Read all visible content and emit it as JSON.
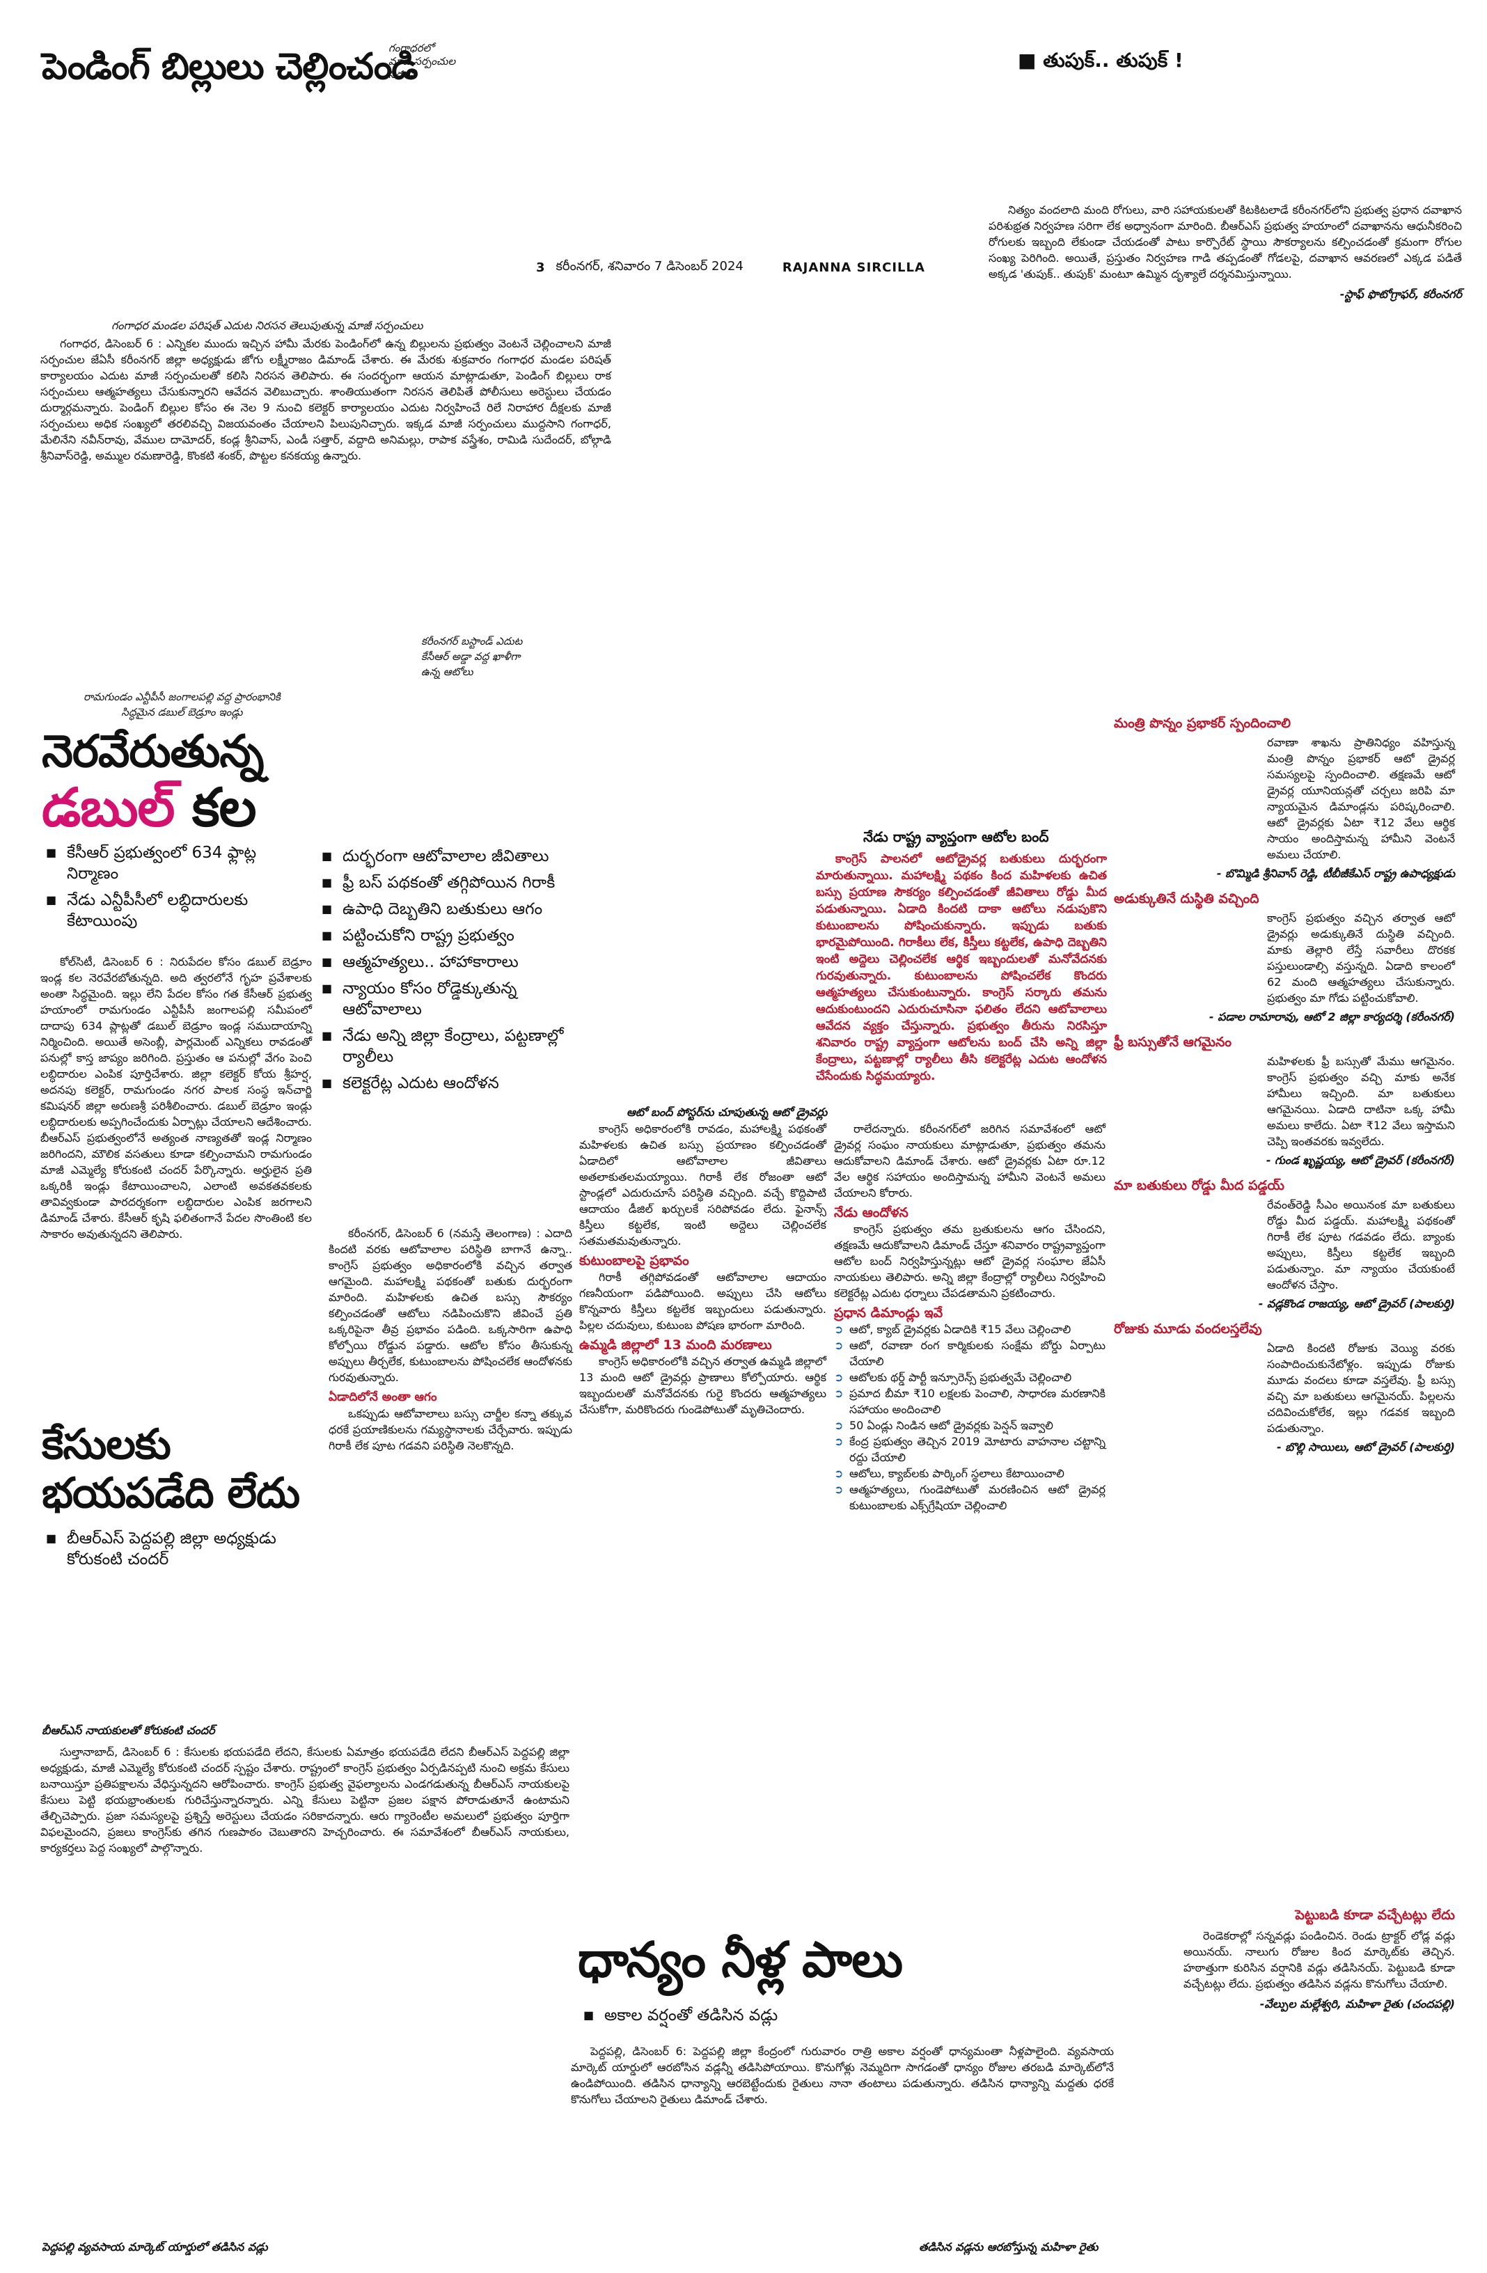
{
  "top_left": {
    "headline": "పెండింగ్ బిల్లులు చెల్లించండి",
    "side_caption_lines": [
      "గంగాధరలో",
      "మాజీ సర్పంచుల",
      "నిరసన"
    ],
    "photo_caption": "గంగాధర మండల పరిషత్ ఎదుట నిరసన తెలుపుతున్న మాజీ సర్పంచులు",
    "body": "గంగాధర, డిసెంబర్ 6 : ఎన్నికల ముందు ఇచ్చిన హామీ మేరకు పెండింగ్‌లో ఉన్న బిల్లులను ప్రభుత్వం వెంటనే చెల్లించాలని మాజీ సర్పంచుల జేఏసీ కరీంనగర్ జిల్లా అధ్యక్షుడు జోగు లక్ష్మీరాజం డిమాండ్ చేశారు. ఈ మేరకు శుక్రవారం గంగాధర మండల పరిషత్ కార్యాలయం ఎదుట మాజీ సర్పంచులతో కలిసి నిరసన తెలిపారు. ఈ సందర్భంగా ఆయన మాట్లాడుతూ, పెండింగ్ బిల్లులు రాక సర్పంచులు ఆత్మహత్యలు చేసుకున్నారని ఆవేదన వెలిబుచ్చారు. శాంతియుతంగా నిరసన తెలిపితే పోలీసులు అరెస్టులు చేయడం దుర్మార్గమన్నారు. పెండింగ్ బిల్లుల కోసం ఈ నెల 9 నుంచి కలెక్టర్ కార్యాలయం ఎదుట నిర్వహించే రిలే నిరాహార దీక్షలకు మాజీ సర్పంచులు అధిక సంఖ్యలో తరలివచ్చి విజయవంతం చేయాలని పిలుపునిచ్చారు. ఇక్కడ మాజీ సర్పంచులు ముద్దసాని గంగాధర్, మేలినేని నవీన్‌రావు, వేముల దామోదర్, కండ్ల శ్రీనివాస్, ఎండీ సత్తార్, వద్దాది అనిమల్లు, రాపాక వస్త్రేశం, రామిడి సుదేందర్, బోల్గాడి శ్రీనివాస్‌రెడ్డి, అమ్ముల రమణారెడ్డి, కొంకటి శంకర్, పొట్టల కనకయ్య ఉన్నారు."
  },
  "top_right": {
    "headline": "తుపుక్.. తుపుక్ !",
    "body": "నిత్యం వందలాది మంది రోగులు, వారి సహాయకులతో కిటకిటలాడే కరీంనగర్‌లోని ప్రభుత్వ ప్రధాన దవాఖాన పరిశుభ్రత నిర్వహణ సరిగా లేక అధ్వానంగా మారింది. బీఆర్ఎస్ ప్రభుత్వ హయాంలో దవాఖానను ఆధునీకరించి రోగులకు ఇబ్బంది లేకుండా చేయడంతో పాటు కార్పొరేట్ స్థాయి సౌకర్యాలను కల్పించడంతో క్రమంగా రోగుల సంఖ్య పెరిగింది. అయితే, ప్రస్తుతం నిర్వహణ గాడి తప్పడంతో గోడలపై, దవాఖాన ఆవరణలో ఎక్కడ పడితే అక్కడ 'తుపుక్.. తుపుక్' మంటూ ఉమ్మిన దృశ్యాలే దర్శనమిస్తున్నాయి.",
    "credit": "-స్టాఫ్ ఫొటోగ్రాఫర్, కరీంనగర్"
  },
  "folio": {
    "page_no": "3",
    "dateline": "కరీంనగర్, శనివారం 7 డిసెంబర్ 2024",
    "edition": "RAJANNA SIRCILLA"
  },
  "mid_captions": {
    "photo_caption_1": [
      "కరీంనగర్ బస్టాండ్ ఎదుట",
      "కేసీఆర్ అడ్డా వద్ద ఖాళీగా",
      "ఉన్న ఆటోలు"
    ],
    "photo_caption_2": [
      "రామగుండం ఎన్టీపీసీ జంగాలపల్లి వద్ద ప్రారంభానికి",
      "సిద్ధమైన డబుల్ బెడ్రూం ఇండ్లు"
    ]
  },
  "double_bed": {
    "headline_part1": "నెరవేరుతున్న",
    "headline_red": "డబుల్",
    "headline_part2": "కల",
    "bullets": [
      "కేసీఆర్ ప్రభుత్వంలో 634 ఫ్లాట్ల నిర్మాణం",
      "నేడు ఎన్టీపీసీలో లబ్ధిదారులకు కేటాయింపు"
    ],
    "body": "కోల్‌సిటీ, డిసెంబర్ 6 : నిరుపేదల కోసం డబుల్ బెడ్రూం ఇండ్ల కల నెరవేరబోతున్నది. అది త్వరలోనే గృహ ప్రవేశాలకు అంతా సిద్ధమైంది. ఇల్లు లేని పేదల కోసం గత కేసీఆర్ ప్రభుత్వ హయాంలో రామగుండం ఎన్టీపీసీ జంగాలపల్లి సమీపంలో దాదాపు 634 ప్లాట్లతో డబుల్ బెడ్రూం ఇండ్ల సముదాయాన్ని నిర్మించింది. అయితే అసెంబ్లీ, పార్లమెంట్ ఎన్నికలు రావడంతో పనుల్లో కాస్త జాప్యం జరిగింది. ప్రస్తుతం ఆ పనుల్లో వేగం పెంచి లబ్ధిదారుల ఎంపిక పూర్తిచేశారు. జిల్లా కలెక్టర్ కోయ శ్రీహర్ష, అదనపు కలెక్టర్, రామగుండం నగర పాలక సంస్థ ఇన్‌చార్జి కమిషనర్ జిల్లా అరుణశ్రీ పరిశీలించారు. డబుల్ బెడ్రూం ఇండ్లు లబ్ధిదారులకు అప్పగించేందుకు ఏర్పాట్లు చేయాలని ఆదేశించారు. బీఆర్ఎస్ ప్రభుత్వంలోనే అత్యంత నాణ్యతతో ఇండ్ల నిర్మాణం జరిగిందని, మౌలిక వసతులు కూడా కల్పించామని రామగుండం మాజీ ఎమ్మెల్యే కోరుకంటి చందర్ పేర్కొన్నారు. అర్హులైన ప్రతి ఒక్కరికీ ఇండ్లు కేటాయించాలని, ఎలాంటి అవకతవకలకు తావివ్వకుండా పారదర్శకంగా లబ్ధిదారుల ఎంపిక జరగాలని డిమాండ్ చేశారు. కేసీఆర్ కృషి ఫలితంగానే పేదల సొంతింటి కల సాకారం అవుతున్నదని తెలిపారు.",
    "sub_bullets": [
      "దుర్భరంగా ఆటోవాలాల జీవితాలు",
      "ఫ్రీ బస్ పథకంతో తగ్గిపోయిన గిరాకీ",
      "ఉపాధి దెబ్బతిని బతుకులు ఆగం",
      "పట్టించుకోని రాష్ట్ర ప్రభుత్వం",
      "ఆత్మహత్యలు.. హాహాకారాలు",
      "న్యాయం కోసం రోడ్డెక్కుతున్న ఆటోవాలాలు",
      "నేడు అన్ని జిల్లా కేంద్రాలు, పట్టణాల్లో ర్యాలీలు",
      "కలెక్టరేట్ల ఎదుట ఆందోళన"
    ]
  },
  "cases": {
    "headline": "కేసులకు భయపడేది లేదు",
    "bullets": [
      "బీఆర్ఎస్ పెద్దపల్లి జిల్లా అధ్యక్షుడు కోరుకంటి చందర్"
    ],
    "photo_caption": "బీఆర్ఎస్ నాయకులతో కోరుకంటి చందర్",
    "body": "సుల్తానాబాద్, డిసెంబర్ 6 : కేసులకు భయపడేది లేదని, కేసులకు ఏమాత్రం భయపడేది లేదని బీఆర్ఎస్ పెద్దపల్లి జిల్లా అధ్యక్షుడు, మాజీ ఎమ్మెల్యే కోరుకంటి చందర్ స్పష్టం చేశారు. రాష్ట్రంలో కాంగ్రెస్ ప్రభుత్వం ఏర్పడినప్పటి నుంచి అక్రమ కేసులు బనాయిస్తూ ప్రతిపక్షాలను వేధిస్తున్నదని ఆరోపించారు. కాంగ్రెస్ ప్రభుత్వ వైఫల్యాలను ఎండగడుతున్న బీఆర్ఎస్ నాయకులపై కేసులు పెట్టి భయభ్రాంతులకు గురిచేస్తున్నారన్నారు. ఎన్ని కేసులు పెట్టినా ప్రజల పక్షాన పోరాడుతూనే ఉంటామని తేల్చిచెప్పారు. ప్రజా సమస్యలపై ప్రశ్నిస్తే అరెస్టులు చేయడం సరికాదన్నారు. ఆరు గ్యారెంటీల అమలులో ప్రభుత్వం పూర్తిగా విఫలమైందని, ప్రజలు కాంగ్రెస్‌కు తగిన గుణపాఠం చెబుతారని హెచ్చరించారు. ఈ సమావేశంలో బీఆర్ఎస్ నాయకులు, కార్యకర్తలు పెద్ద సంఖ్యలో పాల్గొన్నారు."
  },
  "auto_main": {
    "col1": "కరీంనగర్, డిసెంబర్ 6 (నమస్తే తెలంగాణ) : ఎదాది కిందటి వరకు ఆటోవాలాల పరిస్థితి బాగానే ఉన్నా.. కాంగ్రెస్ ప్రభుత్వం అధికారంలోకి వచ్చిన తర్వాత ఆగమైంది. మహాలక్ష్మి పథకంతో బతుకు దుర్భరంగా మారింది. మహిళలకు ఉచిత బస్సు సౌకర్యం కల్పించడంతో ఆటోలు నడిపించుకొని జీవించే ప్రతి ఒక్కరిపైనా తీవ్ర ప్రభావం పడింది. ఒక్కసారిగా ఉపాధి కోల్పోయి రోడ్డున పడ్డారు. ఆటోల కోసం తీసుకున్న అప్పులు తీర్చలేక, కుటుంబాలను పోషించలేక ఆందోళనకు గురవుతున్నారు.",
    "col2": "కాంగ్రెస్ అధికారంలోకి రావడం, మహాలక్ష్మి పథకంతో మహిళలకు ఉచిత బస్సు ప్రయాణం కల్పించడంతో ఏడాదిలో ఆటోవాలాల జీవితాలు అతలాకుతలమయ్యాయి. గిరాకీ లేక రోజంతా ఆటో స్టాండ్లలో ఎదురుచూసే పరిస్థితి వచ్చింది. వచ్చే కొద్దిపాటి ఆదాయం డీజిల్ ఖర్చులకే సరిపోవడం లేదు. ఫైనాన్స్ కిస్తీలు కట్టలేక, ఇంటి అద్దెలు చెల్లించలేక సతమతమవుతున్నారు.",
    "col3": "రాలేదన్నారు. కరీంనగర్‌లో జరిగిన సమావేశంలో ఆటో డ్రైవర్ల సంఘం నాయకులు మాట్లాడుతూ, ప్రభుత్వం తమను ఆదుకోవాలని డిమాండ్ చేశారు. ఆటో డ్రైవర్లకు ఏటా రూ.12 వేల ఆర్థిక సహాయం అందిస్తామన్న హామీని వెంటనే అమలు చేయాలని కోరారు.",
    "sub_vanish": "ఏడాదిలోనే అంతా ఆగం",
    "vanish_text": "ఒకప్పుడు ఆటోవాలాలు బస్సు చార్జీల కన్నా తక్కువ ధరకే ప్రయాణికులను గమ్యస్థానాలకు చేర్చేవారు. ఇప్పుడు గిరాకీ లేక పూట గడవని పరిస్థితి నెలకొన్నది.",
    "sub_family": "కుటుంబాలపై ప్రభావం",
    "family_text": "గిరాకీ తగ్గిపోవడంతో ఆటోవాలాల ఆదాయం గణనీయంగా పడిపోయింది. అప్పులు చేసి ఆటోలు కొన్నవారు కిస్తీలు కట్టలేక ఇబ్బందులు పడుతున్నారు. పిల్లల చదువులు, కుటుంబ పోషణ భారంగా మారింది.",
    "sub_deaths": "ఉమ్మడి జిల్లాలో 13 మంది మరణాలు",
    "deaths_text": "కాంగ్రెస్ అధికారంలోకి వచ్చిన తర్వాత ఉమ్మడి జిల్లాలో 13 మంది ఆటో డ్రైవర్లు ప్రాణాలు కోల్పోయారు. ఆర్థిక ఇబ్బందులతో మనోవేదనకు గురై కొందరు ఆత్మహత్యలు చేసుకోగా, మరికొందరు గుండెపోటుతో మృతిచెందారు."
  },
  "auto_rally": {
    "caption": "ఆటో బంద్ పోస్టర్‌ను చూపుతున్న ఆటో డ్రైవర్లు",
    "sub": "నేడు రాష్ట్ర వ్యాప్తంగా ఆటోల బంద్",
    "red_box": "కాంగ్రెస్ పాలనలో ఆటోడ్రైవర్ల బతుకులు దుర్భరంగా మారుతున్నాయి. మహాలక్ష్మి పథకం కింద మహిళలకు ఉచిత బస్సు ప్రయాణ సౌకర్యం కల్పించడంతో జీవితాలు రోడ్డు మీద పడుతున్నాయి. ఏడాది కిందటి దాకా ఆటోలు నడుపుకొని కుటుంబాలను పోషించుకున్నారు. ఇప్పుడు బతుకు భారమైపోయింది. గిరాకీలు లేక, కిస్తీలు కట్టలేక, ఉపాధి దెబ్బతిని ఇంటి అద్దెలు చెల్లించలేక ఆర్థిక ఇబ్బందులతో మనోవేదనకు గురవుతున్నారు. కుటుంబాలను పోషించలేక కొందరు ఆత్మహత్యలు చేసుకుంటున్నారు. కాంగ్రెస్ సర్కారు తమను ఆదుకుంటుందని ఎదురుచూసినా ఫలితం లేదని ఆటోవాలాలు ఆవేదన వ్యక్తం చేస్తున్నారు. ప్రభుత్వం తీరును నిరసిస్తూ శనివారం రాష్ట్ర వ్యాప్తంగా ఆటోలను బంద్ చేసి అన్ని జిల్లా కేంద్రాలు, పట్టణాల్లో ర్యాలీలు తీసి కలెక్టరేట్ల ఎదుట ఆందోళన చేసేందుకు సిద్ధమయ్యారు.",
    "sub_protest": "నేడు ఆందోళన",
    "protest_text": "కాంగ్రెస్ ప్రభుత్వం తమ బ్రతుకులను ఆగం చేసిందని, తక్షణమే ఆదుకోవాలని డిమాండ్ చేస్తూ శనివారం రాష్ట్రవ్యాప్తంగా ఆటోల బంద్ నిర్వహిస్తున్నట్లు ఆటో డ్రైవర్ల సంఘాల జేఏసీ నాయకులు తెలిపారు. అన్ని జిల్లా కేంద్రాల్లో ర్యాలీలు నిర్వహించి కలెక్టరేట్ల ఎదుట ధర్నాలు చేపడతామని ప్రకటించారు.",
    "sub_demands": "ప్రధాన డిమాండ్లు ఇవే",
    "demands": [
      "ఆటో, క్యాబ్ డ్రైవర్లకు ఏడాదికి ₹15 వేలు చెల్లించాలి",
      "ఆటో, రవాణా రంగ కార్మికులకు సంక్షేమ బోర్డు ఏర్పాటు చేయాలి",
      "ఆటోలకు థర్డ్ పార్టీ ఇన్సూరెన్స్ ప్రభుత్వమే చెల్లించాలి",
      "ప్రమాద బీమా ₹10 లక్షలకు పెంచాలి, సాధారణ మరణానికి సహాయం అందించాలి",
      "50 ఏండ్లు నిండిన ఆటో డ్రైవర్లకు పెన్షన్ ఇవ్వాలి",
      "కేంద్ర ప్రభుత్వం తెచ్చిన 2019 మోటారు వాహనాల చట్టాన్ని రద్దు చేయాలి",
      "ఆటోలు, క్యాబ్‌లకు పార్కింగ్ స్థలాలు కేటాయించాలి",
      "ఆత్మహత్యలు, గుండెపోటుతో మరణించిన ఆటో డ్రైవర్ల కుటుంబాలకు ఎక్స్‌గ్రేషియా చెల్లించాలి"
    ]
  },
  "voices": [
    {
      "head": "మంత్రి పొన్నం ప్రభాకర్ స్పందించాలి",
      "text": "రవాణా శాఖను ప్రాతినిధ్యం వహిస్తున్న మంత్రి పొన్నం ప్రభాకర్ ఆటో డ్రైవర్ల సమస్యలపై స్పందించాలి. తక్షణమే ఆటో డ్రైవర్ల యూనియన్లతో చర్చలు జరిపి మా న్యాయమైన డిమాండ్లను పరిష్కరించాలి. ఆటో డ్రైవర్లకు ఏటా ₹12 వేలు ఆర్థిక సాయం అందిస్తామన్న హామీని వెంటనే అమలు చేయాలి.",
      "credit": "- బొమ్మిడి శ్రీనివాస్ రెడ్డి, టీబీజీకేఎస్ రాష్ట్ర ఉపాధ్యక్షుడు"
    },
    {
      "head": "అడుక్కుతినే దుస్థితి వచ్చింది",
      "text": "కాంగ్రెస్ ప్రభుత్వం వచ్చిన తర్వాత ఆటో డ్రైవర్లు అడుక్కుతినే దుస్థితి వచ్చింది. మాకు తెల్లారి లేస్తే సవారీలు దొరకక పస్తులుండాల్సి వస్తున్నది. ఏడాది కాలంలో 62 మంది ఆత్మహత్యలు చేసుకున్నారు. ప్రభుత్వం మా గోడు పట్టించుకోవాలి.",
      "credit": "- పడాల రామారావు, ఆటో 2 జిల్లా కార్యదర్శి (కరీంనగర్)"
    },
    {
      "head": "ఫ్రీ బస్సుతోనే ఆగమైనం",
      "text": "మహిళలకు ఫ్రీ బస్సుతో మేము ఆగమైనం. కాంగ్రెస్ ప్రభుత్వం వచ్చి మాకు అనేక హామీలు ఇచ్చింది. మా బతుకులు ఆగమైనయి. ఏడాది దాటినా ఒక్క హామీ అమలు కాలేదు. ఏటా ₹12 వేలు ఇస్తామని చెప్పి ఇంతవరకు ఇవ్వలేదు.",
      "credit": "- గుండ ఖృష్ణయ్య, ఆటో డ్రైవర్ (కరీంనగర్)"
    },
    {
      "head": "మా బతుకులు రోడ్డు మీద పడ్డయ్",
      "text": "రేవంత్‌రెడ్డి సీఎం అయినంక మా బతుకులు రోడ్డు మీద పడ్డయ్. మహాలక్ష్మి పథకంతో గిరాకీ లేక పూట గడవడం లేదు. బ్యాంకు అప్పులు, కిస్తీలు కట్టలేక ఇబ్బంది పడుతున్నాం. మా న్యాయం చేయకుంటే ఆందోళన చేస్తాం.",
      "credit": "- వడ్లకొండ రాజయ్య, ఆటో డ్రైవర్ (పాలకుర్తి)"
    },
    {
      "head": "రోజుకు మూడు వందలస్తలేవు",
      "text": "ఏడాది కిందటి రోజుకు వెయ్యి వరకు సంపాదించుకునేటోళ్లం. ఇప్పుడు రోజుకు మూడు వందలు కూడా వస్తలేవు. ఫ్రీ బస్సు వచ్చి మా బతుకులు ఆగమైనయ్. పిల్లలను చదివించుకోలేక, ఇల్లు గడవక ఇబ్బంది పడుతున్నాం.",
      "credit": "- బొల్లి సాయిలు, ఆటో డ్రైవర్ (పాలకుర్తి)"
    }
  ],
  "grain": {
    "headline": "ధాన్యం నీళ్ల పాలు",
    "bullets": [
      "అకాల వర్షంతో తడిసిన వడ్లు"
    ],
    "body": "పెద్దపల్లి, డిసెంబర్ 6: పెద్దపల్లి జిల్లా కేంద్రంలో గురువారం రాత్రి అకాల వర్షంతో ధాన్యమంతా నీళ్లపాలైంది. వ్యవసాయ మార్కెట్ యార్డులో ఆరబోసిన వడ్లన్నీ తడిసిపోయాయి. కొనుగోళ్లు నెమ్మదిగా సాగడంతో ధాన్యం రోజుల తరబడి మార్కెట్‌లోనే ఉండిపోయింది. తడిసిన ధాన్యాన్ని ఆరబెట్టేందుకు రైతులు నానా తంటాలు పడుతున్నారు. తడిసిన ధాన్యాన్ని మద్దతు ధరకే కొనుగోలు చేయాలని రైతులు డిమాండ్ చేశారు.",
    "caption_left": "పెద్దపల్లి వ్యవసాయ మార్కెట్ యార్డులో తడిసిన వడ్లు",
    "caption_right": "తడిసిన వడ్లను ఆరబోస్తున్న మహిళా రైతు"
  },
  "tractor": {
    "head": "పెట్టుబడి కూడా వచ్చేటట్లు లేదు",
    "text": "రెండెకరాల్లో సన్నవడ్లు పండించిన. రెండు ట్రాక్టర్ లోడ్ల వడ్లు అయినయ్. నాలుగు రోజుల కింద మార్కెట్‌కు తెచ్చిన. హఠాత్తుగా కురిసిన వర్షానికి వడ్లు తడిసినయ్. పెట్టుబడి కూడా వచ్చేటట్లు లేదు. ప్రభుత్వం తడిసిన వడ్లను కొనుగోలు చేయాలి.",
    "credit": "-వేల్పుల మల్లేశ్వరి, మహిళా రైతు (చందపల్లి)"
  }
}
